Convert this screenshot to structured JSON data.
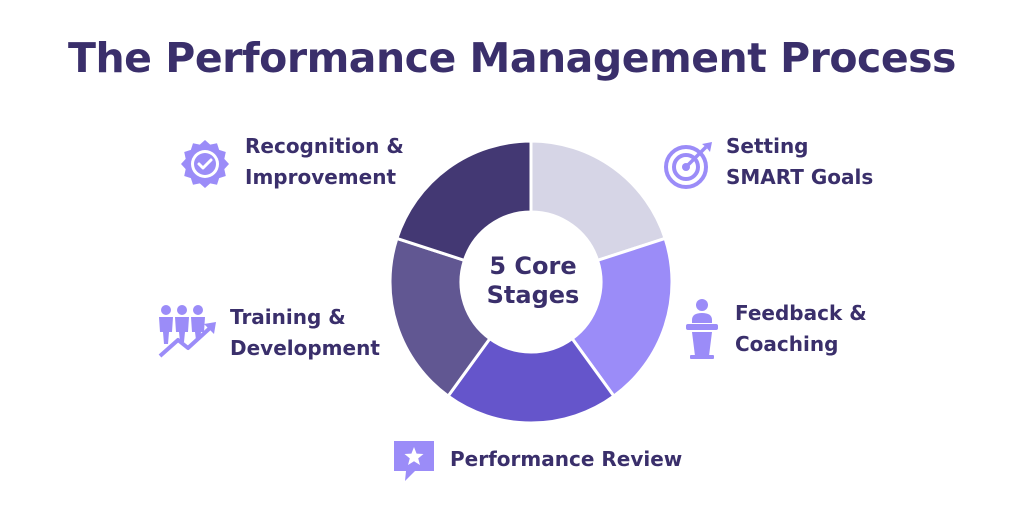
{
  "title": "The Performance Management Process",
  "center": {
    "line1": "5 Core",
    "line2": "Stages"
  },
  "stages": [
    {
      "line1": "Setting",
      "line2": "SMART Goals",
      "icon": "target-icon",
      "color": "#d6d5e6"
    },
    {
      "line1": "Feedback &",
      "line2": "Coaching",
      "icon": "podium-speaker-icon",
      "color": "#9b8cf8"
    },
    {
      "line1": "Performance Review",
      "line2": "",
      "icon": "star-speech-bubble-icon",
      "color": "#6555cb"
    },
    {
      "line1": "Training &",
      "line2": "Development",
      "icon": "team-growth-arrow-icon",
      "color": "#615792"
    },
    {
      "line1": "Recognition &",
      "line2": "Improvement",
      "icon": "badge-check-icon",
      "color": "#433873"
    }
  ],
  "colors": {
    "title": "#3a2f6b",
    "icon": "#9b8cf8"
  }
}
